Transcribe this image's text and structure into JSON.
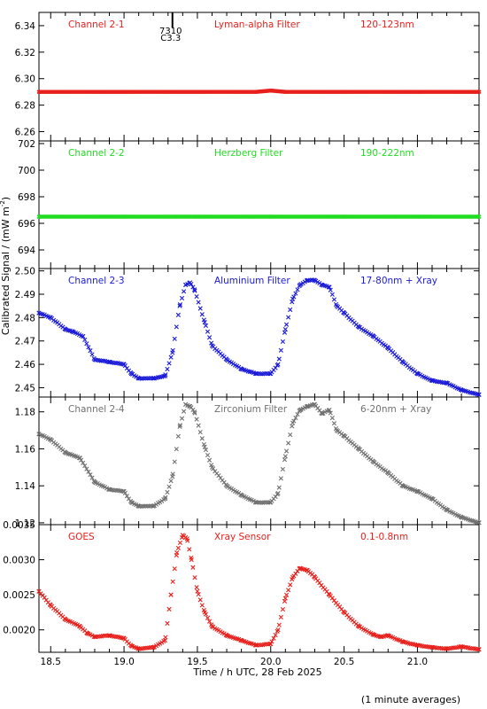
{
  "figure": {
    "ylabel_left": "Calibrated Signal / (mW m",
    "ylabel_sup": "-2",
    "ylabel_tail": ")",
    "xlabel": "Time / h UTC, 28 Feb 2025",
    "footnote": "(1 minute averages)",
    "marker_note_1": "7310",
    "marker_note_2": "C3.3",
    "marker_x": 19.33,
    "xlim": [
      18.42,
      21.42
    ],
    "x_ticks": [
      18.5,
      19.0,
      19.5,
      20.0,
      20.5,
      21.0
    ],
    "x_tick_labels": [
      "18.5",
      "19.0",
      "19.5",
      "20.0",
      "20.5",
      "21.0"
    ]
  },
  "chart_data": [
    {
      "type": "scatter",
      "channel": "Channel 2-1",
      "filter": "Lyman-alpha Filter",
      "band": "120-123nm",
      "color": "#e8201c",
      "ylim": [
        6.253,
        6.35
      ],
      "y_ticks": [
        6.26,
        6.28,
        6.3,
        6.32,
        6.34
      ],
      "y_tick_labels": [
        "6.26",
        "6.28",
        "6.30",
        "6.32",
        "6.34"
      ],
      "x": [
        18.42,
        19.0,
        19.5,
        19.9,
        20.0,
        20.1,
        20.5,
        21.0,
        21.42
      ],
      "y": [
        6.29,
        6.29,
        6.29,
        6.29,
        6.291,
        6.29,
        6.29,
        6.29,
        6.29
      ]
    },
    {
      "type": "scatter",
      "channel": "Channel 2-2",
      "filter": "Herzberg Filter",
      "band": "190-222nm",
      "color": "#22dd22",
      "ylim": [
        692.6,
        702.2
      ],
      "y_ticks": [
        694,
        696,
        698,
        700,
        702
      ],
      "y_tick_labels": [
        "694",
        "696",
        "698",
        "700",
        "702"
      ],
      "x": [
        18.42,
        19.0,
        19.5,
        20.0,
        20.5,
        21.0,
        21.42
      ],
      "y": [
        696.5,
        696.5,
        696.5,
        696.5,
        696.5,
        696.5,
        696.5
      ]
    },
    {
      "type": "scatter",
      "channel": "Channel 2-3",
      "filter": "Aluminium Filter",
      "band": "17-80nm + Xray",
      "color": "#1a1ad8",
      "ylim": [
        2.446,
        2.501
      ],
      "y_ticks": [
        2.45,
        2.46,
        2.47,
        2.48,
        2.49,
        2.5
      ],
      "y_tick_labels": [
        "2.45",
        "2.46",
        "2.47",
        "2.48",
        "2.49",
        "2.50"
      ],
      "x": [
        18.42,
        18.5,
        18.6,
        18.65,
        18.72,
        18.8,
        18.9,
        19.0,
        19.05,
        19.1,
        19.2,
        19.28,
        19.33,
        19.38,
        19.42,
        19.45,
        19.48,
        19.55,
        19.6,
        19.7,
        19.8,
        19.9,
        20.0,
        20.05,
        20.1,
        20.15,
        20.2,
        20.25,
        20.3,
        20.35,
        20.4,
        20.45,
        20.5,
        20.6,
        20.7,
        20.8,
        20.9,
        21.0,
        21.1,
        21.2,
        21.3,
        21.42
      ],
      "y": [
        2.482,
        2.48,
        2.475,
        2.474,
        2.472,
        2.462,
        2.461,
        2.46,
        2.456,
        2.454,
        2.454,
        2.455,
        2.465,
        2.485,
        2.494,
        2.495,
        2.492,
        2.478,
        2.468,
        2.462,
        2.458,
        2.456,
        2.456,
        2.46,
        2.475,
        2.488,
        2.494,
        2.496,
        2.496,
        2.494,
        2.493,
        2.485,
        2.482,
        2.476,
        2.472,
        2.467,
        2.461,
        2.456,
        2.453,
        2.452,
        2.449,
        2.447
      ]
    },
    {
      "type": "scatter",
      "channel": "Channel 2-4",
      "filter": "Zirconium Filter",
      "band": "6-20nm + Xray",
      "color": "#707070",
      "ylim": [
        1.119,
        1.188
      ],
      "y_ticks": [
        1.12,
        1.14,
        1.16,
        1.18
      ],
      "y_tick_labels": [
        "1.12",
        "1.14",
        "1.16",
        "1.18"
      ],
      "x": [
        18.42,
        18.5,
        18.6,
        18.7,
        18.8,
        18.9,
        19.0,
        19.05,
        19.1,
        19.2,
        19.28,
        19.33,
        19.38,
        19.42,
        19.45,
        19.48,
        19.55,
        19.6,
        19.7,
        19.8,
        19.9,
        20.0,
        20.05,
        20.1,
        20.15,
        20.2,
        20.25,
        20.3,
        20.35,
        20.4,
        20.45,
        20.5,
        20.6,
        20.7,
        20.8,
        20.9,
        21.0,
        21.1,
        21.2,
        21.3,
        21.42
      ],
      "y": [
        1.168,
        1.165,
        1.158,
        1.155,
        1.142,
        1.138,
        1.137,
        1.131,
        1.129,
        1.129,
        1.133,
        1.145,
        1.172,
        1.184,
        1.183,
        1.18,
        1.161,
        1.15,
        1.14,
        1.135,
        1.131,
        1.131,
        1.136,
        1.156,
        1.174,
        1.181,
        1.183,
        1.184,
        1.179,
        1.181,
        1.17,
        1.167,
        1.16,
        1.153,
        1.147,
        1.14,
        1.137,
        1.133,
        1.127,
        1.123,
        1.12
      ]
    },
    {
      "type": "scatter",
      "channel": "GOES",
      "filter": "Xray Sensor",
      "band": "0.1-0.8nm",
      "color": "#e8201c",
      "ylim": [
        0.00168,
        0.0035
      ],
      "y_ticks": [
        0.002,
        0.0025,
        0.003,
        0.0035
      ],
      "y_tick_labels": [
        "0.0020",
        "0.0025",
        "0.0030",
        "0.0035"
      ],
      "x": [
        18.42,
        18.5,
        18.6,
        18.7,
        18.75,
        18.8,
        18.9,
        19.0,
        19.05,
        19.1,
        19.2,
        19.28,
        19.32,
        19.36,
        19.4,
        19.43,
        19.46,
        19.5,
        19.55,
        19.6,
        19.7,
        19.8,
        19.9,
        20.0,
        20.05,
        20.1,
        20.15,
        20.2,
        20.25,
        20.3,
        20.4,
        20.5,
        20.6,
        20.7,
        20.75,
        20.8,
        20.9,
        21.0,
        21.1,
        21.2,
        21.3,
        21.42
      ],
      "y": [
        0.00255,
        0.00235,
        0.00215,
        0.00205,
        0.00195,
        0.0019,
        0.00192,
        0.00188,
        0.00177,
        0.00173,
        0.00175,
        0.00185,
        0.0025,
        0.0031,
        0.00335,
        0.0033,
        0.003,
        0.00255,
        0.00225,
        0.00205,
        0.00192,
        0.00185,
        0.00178,
        0.0018,
        0.002,
        0.00245,
        0.00275,
        0.00288,
        0.00285,
        0.00275,
        0.0025,
        0.00225,
        0.00205,
        0.00193,
        0.0019,
        0.00192,
        0.00183,
        0.00178,
        0.00175,
        0.00173,
        0.00176,
        0.00172
      ]
    }
  ]
}
